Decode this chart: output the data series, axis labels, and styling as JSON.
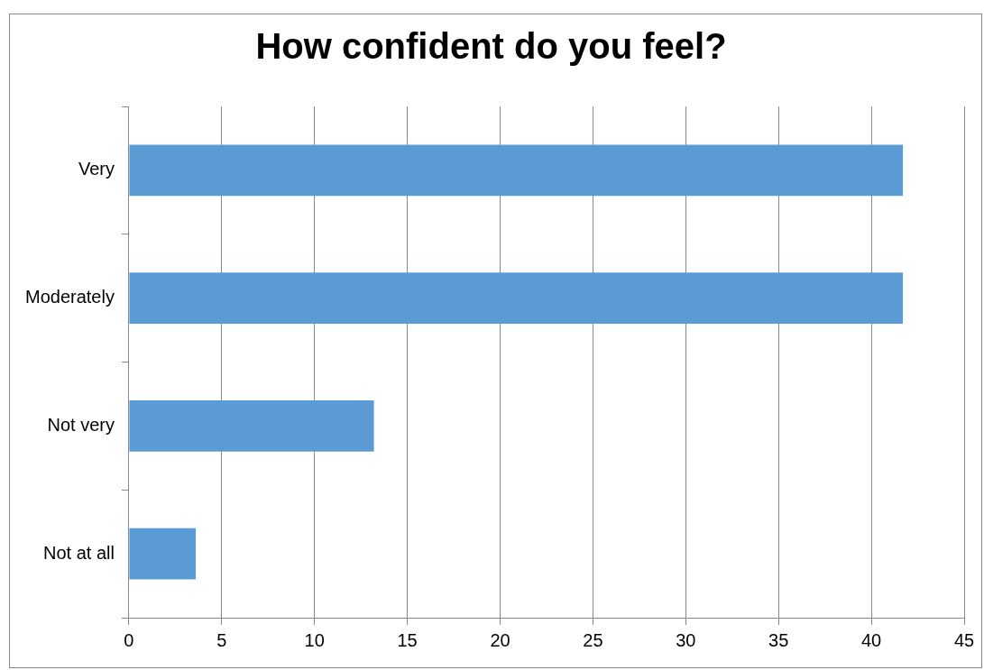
{
  "chart_data": {
    "type": "bar",
    "orientation": "horizontal",
    "title": "How confident do you feel?",
    "categories": [
      "Very",
      "Moderately",
      "Not very",
      "Not at all"
    ],
    "values": [
      41.7,
      41.7,
      13.2,
      3.6
    ],
    "color": "#5b9bd5",
    "xlim": [
      0,
      45
    ],
    "xticks": [
      0,
      5,
      10,
      15,
      20,
      25,
      30,
      35,
      40,
      45
    ],
    "grid": "x",
    "legend": false
  }
}
